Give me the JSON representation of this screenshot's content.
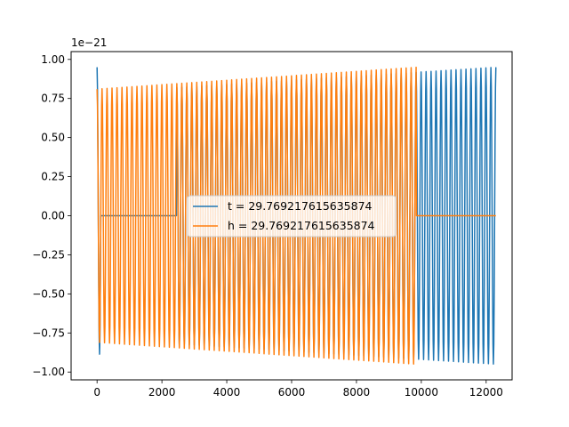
{
  "chart_data": {
    "type": "line",
    "title": "",
    "xlabel": "",
    "ylabel": "",
    "y_offset_label": "1e−21",
    "xlim": [
      -800,
      12800
    ],
    "ylim": [
      -1.05,
      1.05
    ],
    "x_ticks": [
      0,
      2000,
      4000,
      6000,
      8000,
      10000,
      12000
    ],
    "x_tick_labels": [
      "0",
      "2000",
      "4000",
      "6000",
      "8000",
      "10000",
      "12000"
    ],
    "y_ticks": [
      1.0,
      0.75,
      0.5,
      0.25,
      0.0,
      -0.25,
      -0.5,
      -0.75,
      -1.0
    ],
    "y_tick_labels": [
      "1.00",
      "0.75",
      "0.50",
      "0.25",
      "0.00",
      "−0.25",
      "−0.50",
      "−0.75",
      "−1.00"
    ],
    "grid": false,
    "legend_position": "center",
    "series": [
      {
        "name": "t = 29.769217615635874",
        "color": "#1f77b4",
        "x_range": [
          0,
          12300
        ],
        "cycles": 80,
        "segments": [
          {
            "x_start": 0,
            "x_end": 120,
            "amp_start": 0.95,
            "amp_end": 0.85
          },
          {
            "x_start": 120,
            "x_end": 2450,
            "amp_start": 0.0,
            "amp_end": 0.0
          },
          {
            "x_start": 2450,
            "x_end": 12300,
            "amp_start": 0.82,
            "amp_end": 0.95
          }
        ]
      },
      {
        "name": "h = 29.769217615635874",
        "color": "#ff7f0e",
        "x_range": [
          0,
          12300
        ],
        "cycles": 80,
        "segments": [
          {
            "x_start": 0,
            "x_end": 9850,
            "amp_start": 0.81,
            "amp_end": 0.95
          },
          {
            "x_start": 9850,
            "x_end": 12300,
            "amp_start": 0.0,
            "amp_end": 0.0
          }
        ]
      }
    ]
  }
}
